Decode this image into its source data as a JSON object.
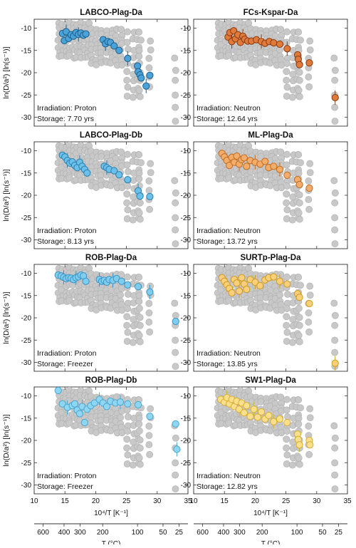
{
  "chart_data": {
    "type": "scatter",
    "y_axis_label": "ln(D/a²) [ln(s⁻¹)]",
    "x_axis_label": "10⁴/T [K⁻¹]",
    "secondary_x_axis_label": "T (°C)",
    "xlim": [
      10,
      35
    ],
    "ylim": [
      -32,
      -8
    ],
    "x_ticks": [
      10,
      15,
      20,
      25,
      30,
      35
    ],
    "y_ticks": [
      -10,
      -15,
      -20,
      -25,
      -30
    ],
    "temperature_ticks": [
      600,
      400,
      300,
      200,
      100,
      50,
      25
    ],
    "background_series_color": "#c8c8c8",
    "panels": [
      {
        "title": "LABCO-Plag-Da",
        "irradiation": "Irradiation: Proton",
        "storage": "Storage: 7.70 yrs",
        "color": "#4aa3d8",
        "edge": "#1f5f8c",
        "data": [
          [
            14.6,
            -11.2
          ],
          [
            14.9,
            -12.8
          ],
          [
            15.2,
            -10.8
          ],
          [
            15.6,
            -12.3
          ],
          [
            16.0,
            -11.5
          ],
          [
            16.4,
            -11.8
          ],
          [
            16.8,
            -11.0
          ],
          [
            17.2,
            -11.4
          ],
          [
            17.6,
            -11.1
          ],
          [
            18.0,
            -11.6
          ],
          [
            18.4,
            -11.3
          ],
          [
            21.2,
            -12.6
          ],
          [
            21.6,
            -13.5
          ],
          [
            22.0,
            -13.0
          ],
          [
            22.4,
            -13.2
          ],
          [
            23.0,
            -14.0
          ],
          [
            23.8,
            -15.0
          ],
          [
            25.2,
            -16.8
          ],
          [
            26.8,
            -18.5
          ],
          [
            26.9,
            -19.8
          ],
          [
            27.2,
            -20.5
          ],
          [
            27.4,
            -21.2
          ],
          [
            28.2,
            -23.0
          ],
          [
            28.8,
            -20.6
          ]
        ]
      },
      {
        "title": "FCs-Kspar-Da",
        "irradiation": "Irradiation: Neutron",
        "storage": "Storage: 12.64 yrs",
        "color": "#e07a3a",
        "edge": "#8a3a12",
        "data": [
          [
            15.6,
            -12.0
          ],
          [
            15.9,
            -11.0
          ],
          [
            16.2,
            -13.0
          ],
          [
            16.5,
            -10.6
          ],
          [
            16.8,
            -12.4
          ],
          [
            17.2,
            -11.5
          ],
          [
            17.6,
            -13.2
          ],
          [
            18.0,
            -11.8
          ],
          [
            18.3,
            -12.5
          ],
          [
            18.8,
            -12.9
          ],
          [
            19.4,
            -12.9
          ],
          [
            20.2,
            -12.6
          ],
          [
            21.0,
            -13.0
          ],
          [
            21.6,
            -13.4
          ],
          [
            22.3,
            -13.0
          ],
          [
            23.0,
            -13.3
          ],
          [
            24.0,
            -13.6
          ],
          [
            25.2,
            -14.6
          ],
          [
            26.9,
            -16.0
          ],
          [
            27.0,
            -17.0
          ],
          [
            27.2,
            -18.2
          ],
          [
            28.8,
            -17.8
          ],
          [
            33.0,
            -25.6
          ]
        ]
      },
      {
        "title": "LABCO-Plag-Db",
        "irradiation": "Irradiation: Proton",
        "storage": "Storage: 8.13 yrs",
        "color": "#6bc0ea",
        "edge": "#2b7fb0",
        "data": [
          [
            14.6,
            -11.0
          ],
          [
            15.0,
            -11.4
          ],
          [
            15.4,
            -12.2
          ],
          [
            15.8,
            -12.8
          ],
          [
            16.2,
            -12.5
          ],
          [
            16.6,
            -13.3
          ],
          [
            17.0,
            -13.8
          ],
          [
            17.4,
            -12.6
          ],
          [
            17.8,
            -13.5
          ],
          [
            18.2,
            -14.2
          ],
          [
            18.6,
            -15.0
          ],
          [
            21.4,
            -13.5
          ],
          [
            21.8,
            -13.8
          ],
          [
            22.2,
            -14.2
          ],
          [
            23.0,
            -14.5
          ],
          [
            23.8,
            -15.4
          ],
          [
            25.2,
            -16.5
          ],
          [
            26.9,
            -19.0
          ],
          [
            27.2,
            -20.2
          ],
          [
            28.8,
            -20.3
          ]
        ]
      },
      {
        "title": "ML-Plag-Da",
        "irradiation": "Irradiation: Neutron",
        "storage": "Storage: 13.72 yrs",
        "color": "#f3ac6a",
        "edge": "#c06c22",
        "data": [
          [
            14.6,
            -10.6
          ],
          [
            15.0,
            -11.4
          ],
          [
            15.4,
            -12.2
          ],
          [
            15.8,
            -13.3
          ],
          [
            16.2,
            -11.5
          ],
          [
            16.6,
            -12.6
          ],
          [
            17.0,
            -11.2
          ],
          [
            17.4,
            -13.0
          ],
          [
            17.8,
            -12.0
          ],
          [
            18.2,
            -11.6
          ],
          [
            18.6,
            -13.5
          ],
          [
            19.2,
            -12.2
          ],
          [
            20.0,
            -12.6
          ],
          [
            20.8,
            -13.0
          ],
          [
            21.6,
            -12.4
          ],
          [
            22.2,
            -13.8
          ],
          [
            23.0,
            -13.5
          ],
          [
            24.0,
            -14.2
          ],
          [
            25.2,
            -15.5
          ],
          [
            26.9,
            -16.5
          ],
          [
            27.2,
            -17.6
          ],
          [
            28.8,
            -18.4
          ]
        ]
      },
      {
        "title": "ROB-Plag-Da",
        "irradiation": "Irradiation: Proton",
        "storage": "Storage: Freezer",
        "color": "#7fcdee",
        "edge": "#3b95c4",
        "data": [
          [
            13.9,
            -10.4
          ],
          [
            14.4,
            -10.6
          ],
          [
            14.8,
            -10.9
          ],
          [
            15.2,
            -11.2
          ],
          [
            15.6,
            -11.0
          ],
          [
            16.0,
            -11.1
          ],
          [
            16.4,
            -11.4
          ],
          [
            16.8,
            -11.0
          ],
          [
            17.2,
            -10.8
          ],
          [
            17.6,
            -10.4
          ],
          [
            18.0,
            -10.6
          ],
          [
            18.4,
            -11.8
          ],
          [
            20.6,
            -11.4
          ],
          [
            21.0,
            -11.8
          ],
          [
            21.4,
            -11.6
          ],
          [
            21.8,
            -12.0
          ],
          [
            22.2,
            -11.4
          ],
          [
            22.8,
            -11.6
          ],
          [
            23.4,
            -11.2
          ],
          [
            24.2,
            -11.8
          ],
          [
            25.2,
            -12.6
          ],
          [
            26.9,
            -13.0
          ],
          [
            28.8,
            -14.2
          ],
          [
            33.0,
            -20.8
          ]
        ]
      },
      {
        "title": "SURTp-Plag-Da",
        "irradiation": "Irradiation: Neutron",
        "storage": "Storage: 13.85 yrs",
        "color": "#f9cf7a",
        "edge": "#cf9a22",
        "data": [
          [
            14.6,
            -11.0
          ],
          [
            15.0,
            -11.8
          ],
          [
            15.4,
            -12.6
          ],
          [
            15.8,
            -13.4
          ],
          [
            16.2,
            -14.4
          ],
          [
            16.6,
            -11.4
          ],
          [
            17.0,
            -12.2
          ],
          [
            17.4,
            -14.0
          ],
          [
            17.8,
            -11.0
          ],
          [
            18.2,
            -12.4
          ],
          [
            18.6,
            -13.6
          ],
          [
            19.2,
            -11.4
          ],
          [
            20.0,
            -12.0
          ],
          [
            20.8,
            -12.8
          ],
          [
            21.6,
            -11.5
          ],
          [
            22.2,
            -11.0
          ],
          [
            23.0,
            -10.8
          ],
          [
            24.0,
            -11.8
          ],
          [
            25.2,
            -12.4
          ],
          [
            26.9,
            -14.6
          ],
          [
            27.2,
            -15.4
          ],
          [
            28.8,
            -16.8
          ],
          [
            33.0,
            -30.2
          ]
        ]
      },
      {
        "title": "ROB-Plag-Db",
        "irradiation": "Irradiation: Proton",
        "storage": "Storage: Freezer",
        "color": "#8fd6f2",
        "edge": "#4aa7d2",
        "data": [
          [
            13.9,
            -8.8
          ],
          [
            14.6,
            -11.8
          ],
          [
            15.4,
            -12.6
          ],
          [
            16.2,
            -12.2
          ],
          [
            16.6,
            -11.8
          ],
          [
            17.0,
            -13.2
          ],
          [
            17.4,
            -14.0
          ],
          [
            17.8,
            -12.4
          ],
          [
            18.2,
            -16.0
          ],
          [
            18.6,
            -13.0
          ],
          [
            19.2,
            -12.2
          ],
          [
            19.8,
            -11.6
          ],
          [
            20.6,
            -10.8
          ],
          [
            21.2,
            -11.6
          ],
          [
            21.8,
            -12.4
          ],
          [
            22.4,
            -11.2
          ],
          [
            23.2,
            -11.6
          ],
          [
            24.0,
            -11.4
          ],
          [
            25.2,
            -11.8
          ],
          [
            26.9,
            -12.0
          ],
          [
            28.8,
            -14.6
          ],
          [
            33.0,
            -16.3
          ],
          [
            33.2,
            -22.0
          ]
        ]
      },
      {
        "title": "SW1-Plag-Da",
        "irradiation": "Irradiation: Neutron",
        "storage": "Storage: 12.82 yrs",
        "color": "#fbe08c",
        "edge": "#d8ae32",
        "data": [
          [
            14.4,
            -10.8
          ],
          [
            15.0,
            -11.4
          ],
          [
            15.4,
            -10.4
          ],
          [
            15.8,
            -11.8
          ],
          [
            16.2,
            -10.8
          ],
          [
            16.6,
            -12.4
          ],
          [
            17.0,
            -11.2
          ],
          [
            17.4,
            -13.0
          ],
          [
            17.8,
            -11.6
          ],
          [
            18.2,
            -13.8
          ],
          [
            18.6,
            -12.2
          ],
          [
            19.2,
            -14.6
          ],
          [
            19.8,
            -13.0
          ],
          [
            20.4,
            -14.8
          ],
          [
            21.0,
            -13.6
          ],
          [
            21.6,
            -15.2
          ],
          [
            22.2,
            -14.4
          ],
          [
            23.0,
            -15.8
          ],
          [
            24.0,
            -15.2
          ],
          [
            25.2,
            -16.0
          ],
          [
            26.9,
            -18.6
          ],
          [
            27.0,
            -19.8
          ],
          [
            27.2,
            -21.0
          ],
          [
            28.8,
            -20.0
          ],
          [
            28.9,
            -21.0
          ]
        ]
      }
    ]
  }
}
